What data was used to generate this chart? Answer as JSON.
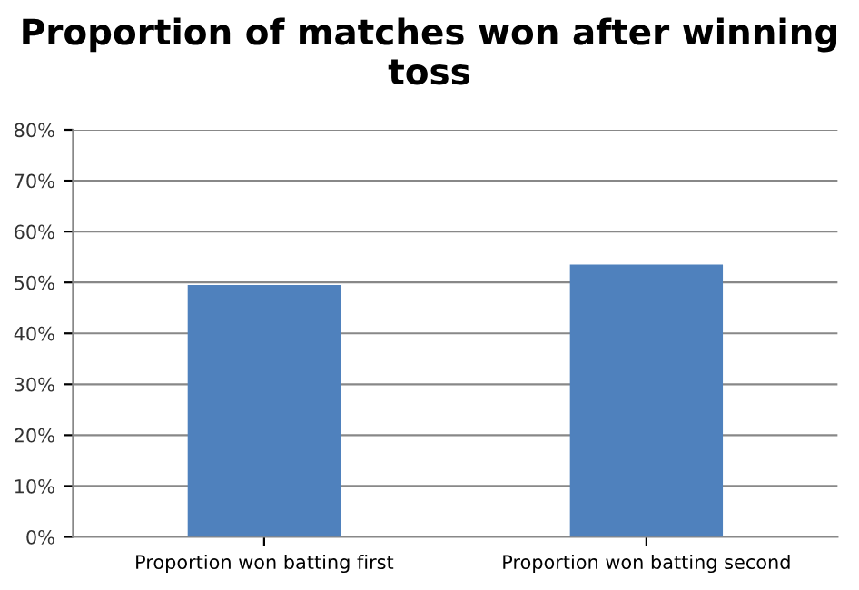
{
  "chart_data": {
    "type": "bar",
    "title": "Proportion of matches won after winning toss",
    "categories": [
      "Proportion won batting first",
      "Proportion won batting second"
    ],
    "values": [
      49.5,
      53.5
    ],
    "color": "#4f81bd",
    "ylim": [
      0,
      80
    ],
    "yticks": [
      {
        "value": 0,
        "label": "0%"
      },
      {
        "value": 10,
        "label": "10%"
      },
      {
        "value": 20,
        "label": "20%"
      },
      {
        "value": 30,
        "label": "30%"
      },
      {
        "value": 40,
        "label": "40%"
      },
      {
        "value": 50,
        "label": "50%"
      },
      {
        "value": 60,
        "label": "60%"
      },
      {
        "value": 70,
        "label": "70%"
      },
      {
        "value": 80,
        "label": "80%"
      }
    ],
    "grid": "y",
    "legend": false
  }
}
